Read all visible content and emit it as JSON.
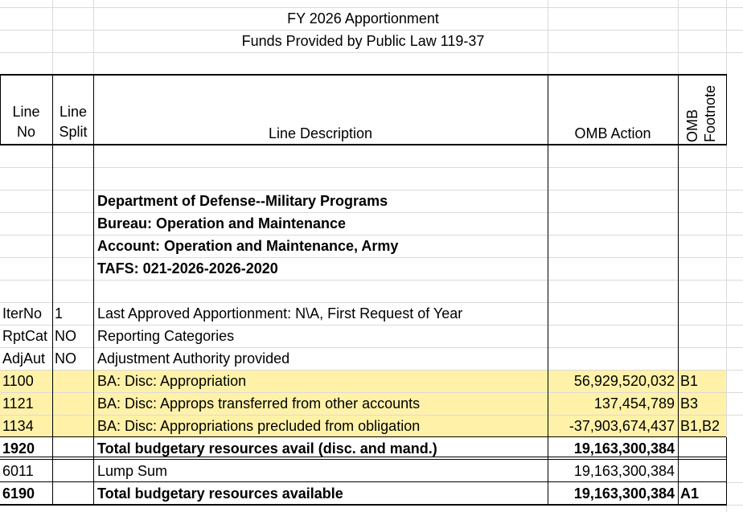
{
  "header": {
    "title": "FY 2026 Apportionment",
    "subtitle": "Funds Provided by Public Law 119-37"
  },
  "columns": [
    "Line No",
    "Line Split",
    "Line Description",
    "OMB Action",
    "OMB Footnote"
  ],
  "agency": [
    "Department of Defense--Military Programs",
    "Bureau: Operation and Maintenance",
    "Account: Operation and Maintenance, Army",
    "TAFS: 021-2026-2026-2020"
  ],
  "info": [
    [
      "IterNo",
      "1",
      "Last Approved Apportionment: N\\A, First Request of Year"
    ],
    [
      "RptCat",
      "NO",
      "Reporting Categories"
    ],
    [
      "AdjAut",
      "NO",
      "Adjustment Authority provided"
    ]
  ],
  "lines": [
    {
      "line": "1100",
      "description": "BA: Disc: Appropriation",
      "amount": "56,929,520,032",
      "footnote": "B1",
      "highlight": true
    },
    {
      "line": "1121",
      "description": "BA: Disc: Approps transferred from other accounts",
      "amount": "137,454,789",
      "footnote": "B3",
      "highlight": true
    },
    {
      "line": "1134",
      "description": "BA: Disc: Appropriations precluded from obligation",
      "amount": "-37,903,674,437",
      "footnote": "B1,B2",
      "highlight": true
    },
    {
      "line": "1920",
      "description": "Total budgetary resources avail (disc. and mand.)",
      "amount": "19,163,300,384",
      "bold": true
    },
    {
      "line": "6011",
      "description": "Lump Sum",
      "amount": "19,163,300,384"
    },
    {
      "line": "6190",
      "description": "Total budgetary resources available",
      "amount": "19,163,300,384",
      "footnote": "A1",
      "bold": true
    }
  ]
}
